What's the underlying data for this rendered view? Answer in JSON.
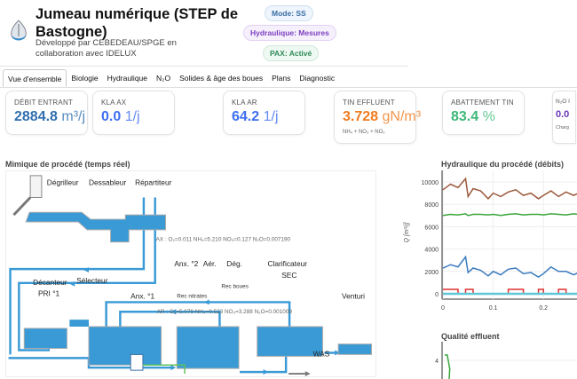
{
  "header": {
    "title": "Jumeau numérique (STEP de Bastogne)",
    "subtitle": "Développé par CEBEDEAU/SPGE en collaboration avec IDELUX",
    "logo_text": "IDELUX",
    "badges": [
      {
        "label": "Mode: SS",
        "color": "#3a6ea5"
      },
      {
        "label": "Hydraulique: Mesures",
        "color": "#7b3fbf"
      },
      {
        "label": "PAX: Activé",
        "color": "#2e8b57"
      }
    ]
  },
  "tabs": [
    {
      "label": "Vue d'ensemble",
      "active": true
    },
    {
      "label": "Biologie"
    },
    {
      "label": "Hydraulique"
    },
    {
      "label": "N₂O"
    },
    {
      "label": "Solides & âge des boues"
    },
    {
      "label": "Plans"
    },
    {
      "label": "Diagnostic"
    }
  ],
  "cards": [
    {
      "label": "DÉBIT ENTRANT",
      "value": "2884.8",
      "unit": "m³/j",
      "color": "#2f6fae"
    },
    {
      "label": "KLA AX",
      "value": "0.0",
      "unit": "1/j",
      "color": "#3d6ff0"
    },
    {
      "label": "KLA AR",
      "value": "64.2",
      "unit": "1/j",
      "color": "#3d6ff0"
    },
    {
      "label": "TIN EFFLUENT",
      "value": "3.728",
      "unit": "gN/m³",
      "color": "#f07b20",
      "note": "NH₄ + NO₃ + NO₂"
    },
    {
      "label": "ABATTEMENT TIN",
      "value": "83.4",
      "unit": "%",
      "color": "#3cb878"
    },
    {
      "label": "N₂O I",
      "value": "0.0",
      "unit": "",
      "color": "#6a35b8",
      "note": "Charg"
    }
  ],
  "process": {
    "title": "Mimique de procédé (temps réel)",
    "labels": {
      "degrilleur": "Dégrilleur",
      "dessableur": "Dessableur",
      "repartiteur": "Répartiteur",
      "decanteur1": "Décanteur",
      "decanteur2": "PRI °1",
      "selecteur": "Sélecteur",
      "anx1": "Anx. °1",
      "anx2": "Anx. °2",
      "aer": "Aér.",
      "deg": "Dég.",
      "clar1": "Clarificateur",
      "clar2": "SEC",
      "venturi": "Venturi",
      "rec_boues": "Rec boues",
      "rec_nitrates": "Rec nitrates",
      "was": "WAS"
    },
    "ax_readout": "AX : O₂=0.011  NH₄=5.210  NO₃=0.127  N₂O=0.007190",
    "ar_readout": "AR : O₂=5.076  NH₄=0.523  NO₃=3.288  N₂O=0.001009"
  },
  "chart_data": [
    {
      "type": "line",
      "title": "Hydraulique du procédé (débits)",
      "ylabel": "Q [m³/j]",
      "xlabel": "",
      "xlim": [
        0,
        0.27
      ],
      "ylim": [
        -300,
        10800
      ],
      "yticks": [
        "0",
        "2000",
        "4000",
        "6000",
        "8000",
        "10000"
      ],
      "xticks": [
        "0",
        "0.1",
        "0.2"
      ],
      "grid": true,
      "x": [
        0,
        0.015,
        0.03,
        0.045,
        0.05,
        0.06,
        0.075,
        0.09,
        0.1,
        0.115,
        0.13,
        0.145,
        0.16,
        0.175,
        0.19,
        0.2,
        0.215,
        0.23,
        0.245,
        0.26,
        0.27
      ],
      "series": [
        {
          "name": "brown",
          "color": "#9c5a3c",
          "values": [
            9300,
            9800,
            9500,
            10300,
            8700,
            9400,
            9200,
            8500,
            9000,
            8700,
            9100,
            9300,
            8800,
            9000,
            8500,
            8800,
            9200,
            8700,
            9100,
            8800,
            9000
          ]
        },
        {
          "name": "green",
          "color": "#3aa53a",
          "values": [
            7000,
            7100,
            7050,
            7150,
            7000,
            7100,
            7100,
            7050,
            7100,
            7000,
            7100,
            7150,
            7050,
            7100,
            7100,
            7050,
            7150,
            7100,
            7050,
            7150,
            7100
          ]
        },
        {
          "name": "blue",
          "color": "#3a7bbf",
          "values": [
            2300,
            2600,
            2400,
            3300,
            1900,
            2300,
            2100,
            1600,
            2000,
            1700,
            2200,
            2300,
            1800,
            1900,
            1500,
            1800,
            2400,
            2000,
            2000,
            1700,
            1900
          ]
        },
        {
          "name": "red",
          "color": "#e03030",
          "values": [
            400,
            400,
            0,
            400,
            400,
            0,
            0,
            0,
            0,
            0,
            400,
            400,
            0,
            0,
            400,
            0,
            0,
            400,
            0,
            0,
            400
          ]
        },
        {
          "name": "cyan",
          "color": "#5ec8d8",
          "values": [
            0,
            0,
            0,
            0,
            0,
            0,
            0,
            0,
            0,
            0,
            0,
            0,
            0,
            0,
            0,
            0,
            0,
            0,
            0,
            0,
            0
          ]
        }
      ]
    },
    {
      "type": "line",
      "title": "Qualité effluent",
      "yticks": [
        "4"
      ],
      "series": [
        {
          "name": "green",
          "color": "#3aa53a",
          "x": [
            0,
            0.005,
            0.01
          ],
          "values": [
            4.5,
            4.5,
            3.2
          ]
        }
      ]
    }
  ]
}
